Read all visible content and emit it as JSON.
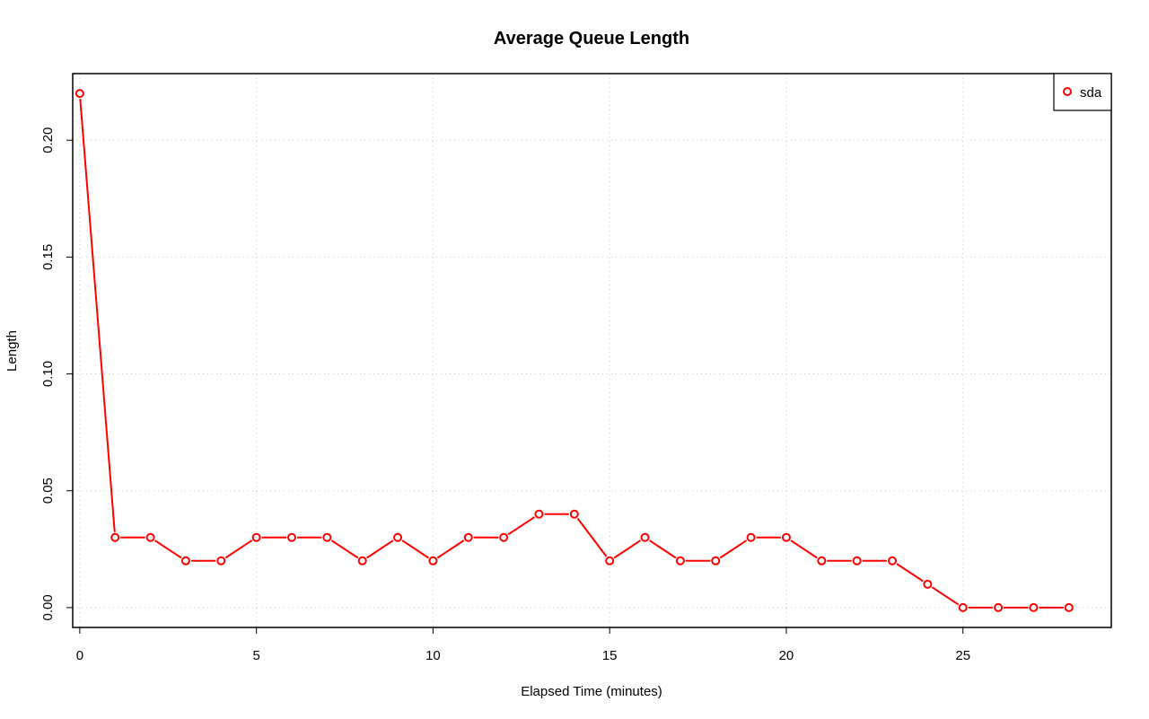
{
  "chart_data": {
    "type": "line",
    "title": "Average Queue Length",
    "xlabel": "Elapsed Time (minutes)",
    "ylabel": "Length",
    "xlim": [
      -0.2,
      29.2
    ],
    "ylim": [
      -0.0085,
      0.2285
    ],
    "xticks": [
      0,
      5,
      10,
      15,
      20,
      25
    ],
    "xtick_labels": [
      "0",
      "5",
      "10",
      "15",
      "20",
      "25"
    ],
    "yticks": [
      0.0,
      0.05,
      0.1,
      0.15,
      0.2
    ],
    "ytick_labels": [
      "0.00",
      "0.05",
      "0.10",
      "0.15",
      "0.20"
    ],
    "grid": true,
    "legend_position": "top-right",
    "series": [
      {
        "name": "sda",
        "color": "#ff0000",
        "marker": "open-circle",
        "x": [
          0,
          1,
          2,
          3,
          4,
          5,
          6,
          7,
          8,
          9,
          10,
          11,
          12,
          13,
          14,
          15,
          16,
          17,
          18,
          19,
          20,
          21,
          22,
          23,
          24,
          25,
          26,
          27,
          28
        ],
        "values": [
          0.22,
          0.03,
          0.03,
          0.02,
          0.02,
          0.03,
          0.03,
          0.03,
          0.02,
          0.03,
          0.02,
          0.03,
          0.03,
          0.04,
          0.04,
          0.02,
          0.03,
          0.02,
          0.02,
          0.03,
          0.03,
          0.02,
          0.02,
          0.02,
          0.01,
          0.0,
          0.0,
          0.0,
          0.0
        ]
      }
    ]
  }
}
